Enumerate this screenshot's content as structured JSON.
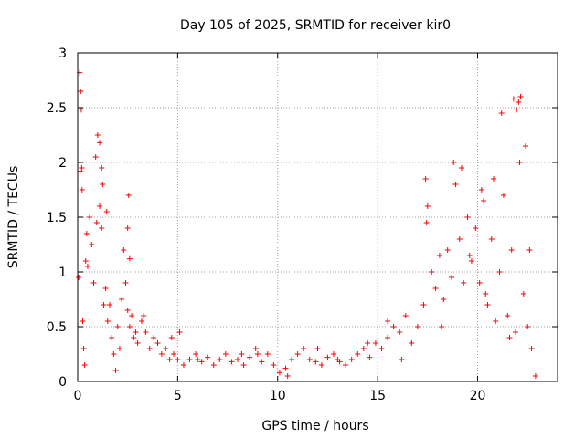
{
  "chart_data": {
    "type": "scatter",
    "title": "Day 105 of 2025, SRMTID for receiver kir0",
    "xlabel": "GPS time / hours",
    "ylabel": "SRMTID / TECUs",
    "xlim": [
      0,
      24
    ],
    "ylim": [
      0,
      3
    ],
    "xticks": [
      0,
      5,
      10,
      15,
      20
    ],
    "yticks": [
      0,
      0.5,
      1,
      1.5,
      2,
      2.5,
      3
    ],
    "xtick_labels": [
      "0",
      "5",
      "10",
      "15",
      "20"
    ],
    "ytick_labels": [
      "0",
      "0.5",
      "1",
      "1.5",
      "2",
      "2.5",
      "3"
    ],
    "grid": true,
    "marker": "+",
    "color": "#ff0000",
    "series": [
      {
        "name": "SRMTID",
        "x": [
          0.05,
          0.1,
          0.15,
          0.2,
          0.25,
          0.3,
          0.35,
          0.4,
          0.45,
          0.5,
          0.6,
          0.7,
          0.8,
          0.9,
          1.0,
          1.1,
          1.2,
          1.3,
          1.4,
          1.5,
          1.6,
          1.7,
          1.8,
          1.9,
          2.0,
          2.1,
          2.2,
          2.3,
          2.4,
          2.5,
          2.6,
          2.7,
          2.8,
          2.9,
          3.0,
          3.2,
          3.4,
          3.6,
          3.8,
          4.0,
          4.2,
          4.4,
          4.6,
          4.8,
          5.0,
          5.3,
          5.6,
          5.9,
          6.2,
          6.5,
          6.8,
          7.1,
          7.4,
          7.7,
          8.0,
          8.3,
          8.6,
          8.9,
          9.2,
          9.5,
          9.8,
          10.1,
          10.4,
          10.7,
          11.0,
          11.3,
          11.6,
          11.9,
          12.2,
          12.5,
          12.8,
          13.1,
          13.4,
          13.7,
          14.0,
          14.3,
          14.6,
          14.9,
          15.2,
          15.5,
          15.8,
          16.1,
          16.4,
          16.7,
          17.0,
          17.3,
          17.5,
          17.7,
          17.9,
          18.1,
          18.3,
          18.5,
          18.7,
          18.9,
          19.1,
          19.3,
          19.5,
          19.7,
          19.9,
          20.1,
          20.3,
          20.5,
          20.7,
          20.9,
          21.1,
          21.3,
          21.5,
          21.7,
          21.9,
          22.1,
          22.3,
          22.5,
          22.7,
          22.9,
          0.12,
          0.18,
          0.22,
          1.1,
          1.2,
          1.25,
          2.5,
          2.55,
          2.6,
          17.4,
          17.45,
          18.8,
          19.2,
          20.2,
          20.8,
          21.2,
          21.8,
          21.95,
          22.05,
          22.15,
          22.4,
          22.6,
          5.1,
          9.0,
          12.0,
          14.5,
          15.5,
          16.2,
          0.95,
          1.45,
          3.3,
          4.7,
          6.0,
          8.2,
          10.5,
          13.0,
          18.2,
          19.6,
          20.4,
          21.6
        ],
        "y": [
          0.95,
          2.82,
          2.65,
          1.95,
          0.55,
          0.3,
          0.15,
          1.1,
          1.35,
          1.05,
          1.5,
          1.25,
          0.9,
          2.05,
          2.25,
          1.6,
          1.4,
          0.7,
          0.85,
          0.55,
          0.7,
          0.4,
          0.25,
          0.1,
          0.5,
          0.3,
          0.75,
          1.2,
          0.9,
          0.65,
          0.5,
          0.6,
          0.4,
          0.45,
          0.35,
          0.55,
          0.45,
          0.3,
          0.4,
          0.35,
          0.25,
          0.3,
          0.2,
          0.25,
          0.2,
          0.15,
          0.2,
          0.25,
          0.18,
          0.22,
          0.15,
          0.2,
          0.25,
          0.18,
          0.2,
          0.15,
          0.22,
          0.3,
          0.18,
          0.25,
          0.15,
          0.08,
          0.12,
          0.2,
          0.25,
          0.3,
          0.2,
          0.18,
          0.15,
          0.22,
          0.25,
          0.18,
          0.15,
          0.2,
          0.25,
          0.3,
          0.22,
          0.35,
          0.3,
          0.4,
          0.5,
          0.45,
          0.6,
          0.35,
          0.5,
          0.7,
          1.6,
          1.0,
          0.85,
          1.15,
          0.75,
          1.2,
          0.95,
          1.8,
          1.3,
          0.9,
          1.5,
          1.1,
          1.4,
          0.9,
          1.65,
          0.7,
          1.3,
          0.55,
          1.0,
          1.7,
          0.6,
          1.2,
          0.45,
          2.0,
          0.8,
          0.5,
          0.3,
          0.05,
          1.92,
          2.48,
          1.75,
          2.18,
          1.95,
          1.8,
          1.4,
          1.7,
          1.12,
          1.85,
          1.45,
          2.0,
          1.95,
          1.75,
          1.85,
          2.45,
          2.58,
          2.48,
          2.55,
          2.6,
          2.15,
          1.2,
          0.45,
          0.25,
          0.3,
          0.35,
          0.55,
          0.2,
          1.45,
          1.55,
          0.6,
          0.4,
          0.2,
          0.25,
          0.05,
          0.2,
          0.5,
          1.15,
          0.8,
          0.4
        ]
      }
    ]
  }
}
